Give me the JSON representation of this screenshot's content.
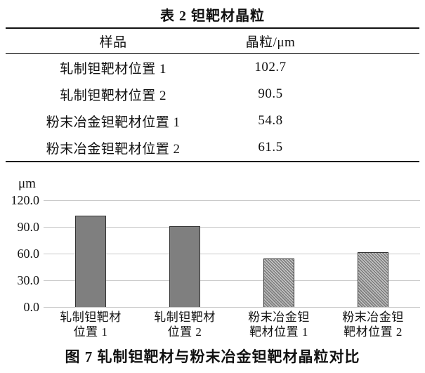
{
  "table": {
    "title": "表 2  钽靶材晶粒",
    "columns": [
      "样品",
      "晶粒/μm"
    ],
    "rows": [
      {
        "sample": "轧制钽靶材位置 1",
        "value": "102.7"
      },
      {
        "sample": "轧制钽靶材位置 2",
        "value": "90.5"
      },
      {
        "sample": "粉末冶金钽靶材位置 1",
        "value": "54.8"
      },
      {
        "sample": "粉末冶金钽靶材位置 2",
        "value": "61.5"
      }
    ]
  },
  "chart_data": {
    "type": "bar",
    "unit_label": "μm",
    "categories": [
      [
        "轧制钽靶材",
        "位置 1"
      ],
      [
        "轧制钽靶材",
        "位置 2"
      ],
      [
        "粉末冶金钽",
        "靶材位置 1"
      ],
      [
        "粉末冶金钽",
        "靶材位置 2"
      ]
    ],
    "values": [
      102.7,
      90.5,
      54.8,
      61.5
    ],
    "bar_styles": [
      "solid",
      "solid",
      "hatched",
      "hatched"
    ],
    "yticks": [
      0,
      30,
      60,
      90,
      120
    ],
    "ytick_labels": [
      "0.0",
      "30.0",
      "60.0",
      "90.0",
      "120.0"
    ],
    "ylim": [
      0,
      120
    ],
    "grid": true,
    "legend": "none",
    "colors": {
      "bar_fill": "#7f7f7f",
      "bar_border": "#333333",
      "hatch_light": "#d9d9d9",
      "gridline": "#c9c9c9",
      "text": "#111111"
    }
  },
  "figure_caption": "图 7  轧制钽靶材与粉末冶金钽靶材晶粒对比"
}
